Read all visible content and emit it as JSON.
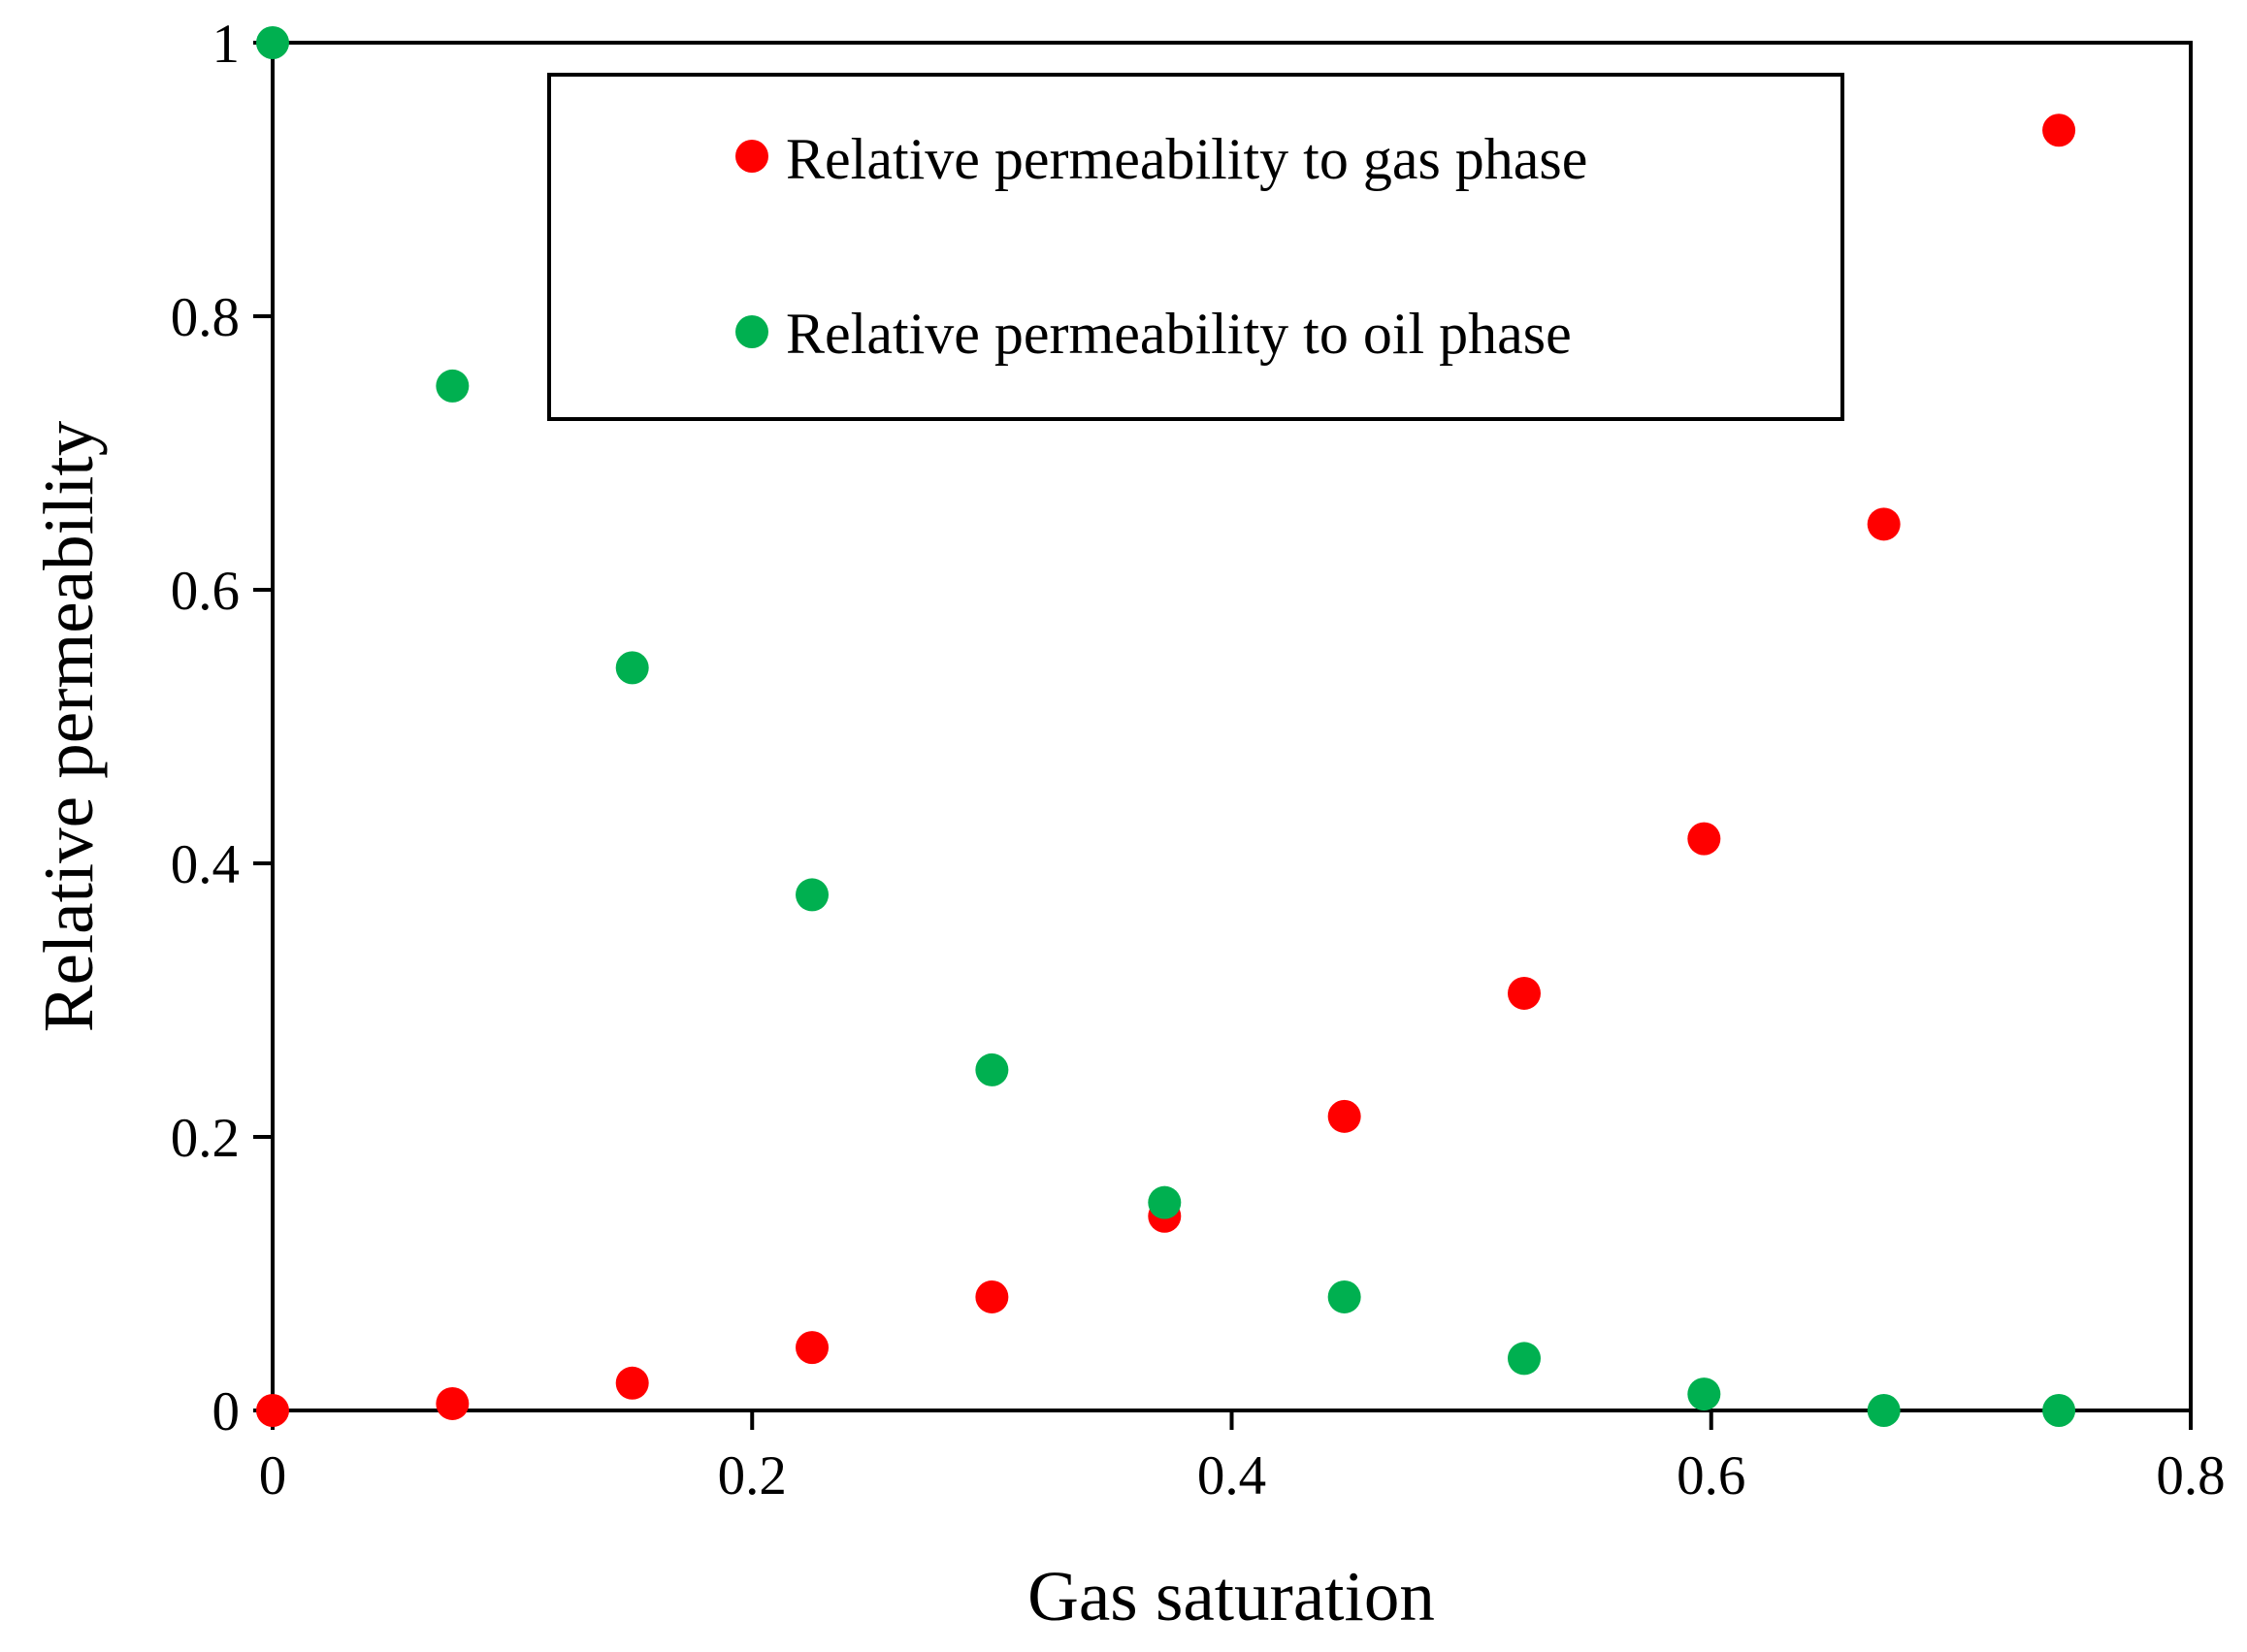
{
  "chart_data": {
    "type": "scatter",
    "title": "",
    "xlabel": "Gas saturation",
    "ylabel": "Relative  permeability",
    "xlim": [
      0,
      0.8
    ],
    "ylim": [
      0,
      1
    ],
    "xticks": [
      0,
      0.2,
      0.4,
      0.6,
      0.8
    ],
    "yticks": [
      0,
      0.2,
      0.4,
      0.6,
      0.8,
      1
    ],
    "xtick_labels": [
      "0",
      "0.2",
      "0.4",
      "0.6",
      "0.8"
    ],
    "ytick_labels": [
      "0",
      "0.2",
      "0.4",
      "0.6",
      "0.8",
      "1"
    ],
    "grid": false,
    "legend_position": "top-center",
    "series": [
      {
        "name": "Relative permeability to gas phase",
        "color": "#ff0000",
        "x": [
          0,
          0.075,
          0.15,
          0.225,
          0.3,
          0.372,
          0.447,
          0.522,
          0.597,
          0.672,
          0.745
        ],
        "y": [
          0,
          0.005,
          0.02,
          0.046,
          0.083,
          0.142,
          0.215,
          0.305,
          0.418,
          0.648,
          0.936
        ]
      },
      {
        "name": "Relative permeability to oil phase",
        "color": "#00b050",
        "x": [
          0,
          0.075,
          0.15,
          0.225,
          0.3,
          0.372,
          0.447,
          0.522,
          0.597,
          0.672,
          0.745
        ],
        "y": [
          1,
          0.749,
          0.543,
          0.377,
          0.249,
          0.152,
          0.083,
          0.038,
          0.012,
          0,
          0
        ]
      }
    ]
  }
}
